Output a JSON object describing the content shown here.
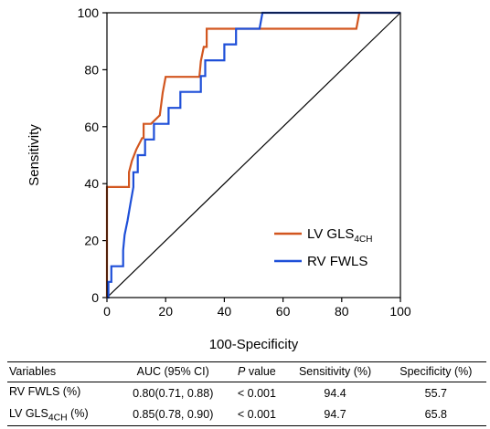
{
  "chart_data": {
    "type": "line",
    "xlabel": "100-Specificity",
    "ylabel": "Sensitivity",
    "xlim": [
      0,
      100
    ],
    "ylim": [
      0,
      100
    ],
    "x_ticks": [
      "0",
      "20",
      "40",
      "60",
      "80",
      "100"
    ],
    "y_ticks": [
      "0",
      "20",
      "40",
      "60",
      "80",
      "100"
    ],
    "grid": false,
    "legend_position": "lower-right",
    "reference_line": {
      "x": [
        0,
        100
      ],
      "y": [
        0,
        100
      ],
      "color": "#000000"
    },
    "series": [
      {
        "name": "LV GLS",
        "name_subscript": "4CH",
        "color": "#D2561F",
        "x": [
          0,
          0,
          0.8,
          0.8,
          7.5,
          7.5,
          8.5,
          10,
          12,
          12.5,
          12.5,
          15,
          18,
          19,
          20,
          21,
          26,
          31.5,
          32,
          33,
          34,
          34,
          34.5,
          85,
          86,
          100
        ],
        "y": [
          0,
          38.8,
          38.8,
          38.8,
          38.8,
          44,
          48,
          52,
          56,
          56,
          61,
          61,
          64,
          72,
          77.5,
          77.5,
          77.5,
          77.5,
          83,
          88,
          88,
          94.4,
          94.4,
          94.4,
          100,
          100
        ]
      },
      {
        "name": "RV FWLS",
        "name_subscript": "",
        "color": "#1E4FD8",
        "x": [
          0,
          0.5,
          0.5,
          1.5,
          1.5,
          5.5,
          5.5,
          6,
          7,
          8,
          9,
          9,
          10.5,
          10.5,
          13,
          13,
          16,
          16,
          21,
          21,
          25,
          25,
          32,
          32,
          33.5,
          33.5,
          40,
          40,
          44,
          44,
          52,
          53,
          100
        ],
        "y": [
          0,
          0,
          5.5,
          5.5,
          11,
          11,
          16.6,
          22,
          27,
          33,
          38.8,
          44,
          44,
          50,
          50,
          55.5,
          55.5,
          61,
          61,
          66.6,
          66.6,
          72.2,
          72.2,
          77.8,
          77.8,
          83.3,
          83.3,
          88.9,
          88.9,
          94.4,
          94.4,
          100,
          100
        ]
      }
    ],
    "table": {
      "headers": [
        "Variables",
        "AUC (95% CI)",
        "P",
        "value",
        "Sensitivity (%)",
        "Specificity (%)"
      ],
      "rows": [
        {
          "var": "RV FWLS (%)",
          "var_sub": "",
          "var_suffix": "",
          "auc": "0.80(0.71, 0.88)",
          "p": "< 0.001",
          "sens": "94.4",
          "spec": "55.7"
        },
        {
          "var": "LV GLS",
          "var_sub": "4CH",
          "var_suffix": " (%)",
          "auc": "0.85(0.78, 0.90)",
          "p": "< 0.001",
          "sens": "94.7",
          "spec": "65.8"
        }
      ]
    }
  }
}
